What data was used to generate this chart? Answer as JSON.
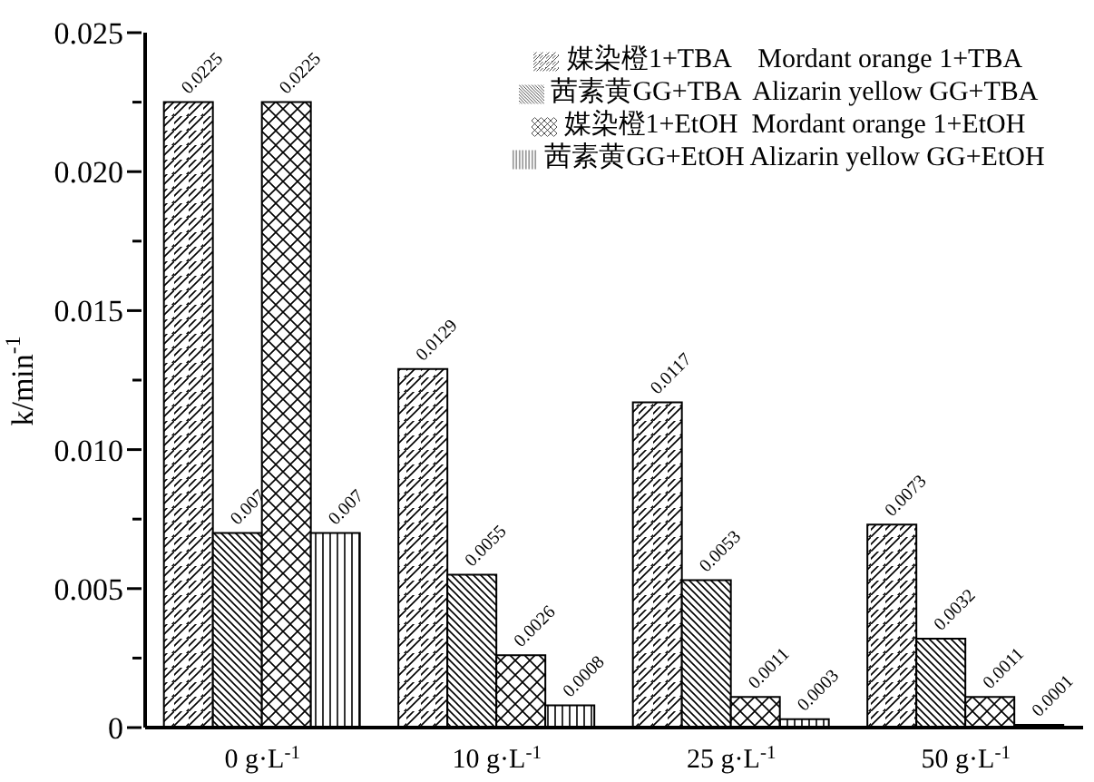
{
  "chart_data": {
    "type": "bar",
    "ylabel": "k/min$^{-1}$",
    "categories": [
      "0 g·L$^{-1}$",
      "10 g·L$^{-1}$",
      "25 g·L$^{-1}$",
      "50 g·L$^{-1}$"
    ],
    "series": [
      {
        "name": "媒染橙1+TBA    Mordant orange 1+TBA",
        "color": "#000000",
        "values": [
          0.0225,
          0.0129,
          0.0117,
          0.0073
        ]
      },
      {
        "name": "茜素黄GG+TBA  Alizarin yellow GG+TBA",
        "color": "#000000",
        "values": [
          0.007,
          0.0055,
          0.0053,
          0.0032
        ]
      },
      {
        "name": "媒染橙1+EtOH  Mordant orange 1+EtOH",
        "color": "#000000",
        "values": [
          0.0225,
          0.0026,
          0.0011,
          0.0011
        ]
      },
      {
        "name": "茜素黄GG+EtOH Alizarin yellow GG+EtOH",
        "color": "#000000",
        "values": [
          0.007,
          0.0008,
          0.0003,
          0.0001
        ]
      }
    ],
    "ylim": [
      0,
      0.025
    ],
    "yticks": [
      0,
      {
        "value": 0.0025,
        "label": null
      },
      {
        "value": 0.005,
        "label": "0.005"
      },
      {
        "value": 0.0075,
        "label": null
      },
      {
        "value": 0.01,
        "label": "0.010"
      },
      {
        "value": 0.0125,
        "label": null
      },
      {
        "value": 0.015,
        "label": "0.015"
      },
      {
        "value": 0.0175,
        "label": null
      },
      {
        "value": 0.02,
        "label": "0.020"
      },
      {
        "value": 0.0225,
        "label": null
      },
      {
        "value": 0.025,
        "label": "0.025"
      }
    ],
    "data_labels": true,
    "legend": "top right",
    "grid": false
  }
}
